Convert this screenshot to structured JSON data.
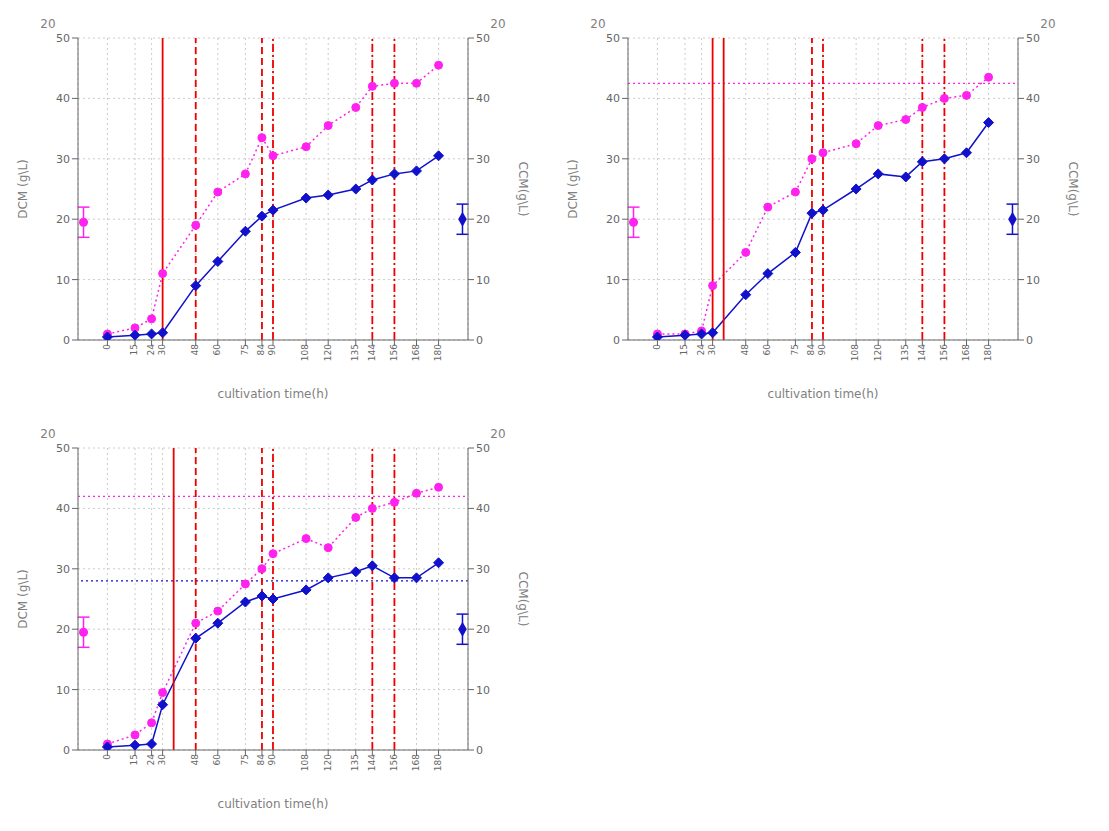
{
  "chart_data": [
    {
      "type": "line",
      "x": [
        0,
        15,
        24,
        30,
        48,
        60,
        75,
        84,
        90,
        108,
        120,
        135,
        144,
        156,
        168,
        180
      ],
      "series": [
        {
          "color": "#FF22EE",
          "marker": "circle",
          "line_style": "dotted",
          "values": [
            1.0,
            2.0,
            3.5,
            11.0,
            19.0,
            24.5,
            27.5,
            33.5,
            30.5,
            32.0,
            35.5,
            38.5,
            42.0,
            42.5,
            42.5,
            45.5
          ]
        },
        {
          "color": "#1111CC",
          "marker": "diamond",
          "line_style": "solid",
          "axis": "y2",
          "values": [
            0.5,
            0.8,
            1.0,
            1.2,
            9.0,
            13.0,
            18.0,
            20.5,
            21.5,
            23.5,
            24.0,
            25.0,
            26.5,
            27.5,
            28.0,
            30.5
          ]
        },
        {
          "color": "#FF22EE",
          "marker": "circle",
          "x": [
            -13
          ],
          "values": [
            19.5
          ],
          "error": [
            2.5
          ]
        },
        {
          "color": "#1111CC",
          "marker": "diamond",
          "axis": "y2",
          "x": [
            193
          ],
          "values": [
            20.0
          ],
          "error": [
            2.5
          ]
        }
      ],
      "vlines": [
        {
          "x": 30,
          "color": "#EE0000",
          "line_style": "solid"
        },
        {
          "x": 48,
          "color": "#EE0000",
          "line_style": "dashed"
        },
        {
          "x": 84,
          "color": "#EE0000",
          "line_style": "dashed"
        },
        {
          "x": 90,
          "color": "#EE0000",
          "line_style": "dashdot"
        },
        {
          "x": 144,
          "color": "#EE0000",
          "line_style": "dashdot"
        },
        {
          "x": 156,
          "color": "#EE0000",
          "line_style": "dashdot"
        }
      ],
      "hlines": [],
      "xlabel": "cultivation time(h)",
      "ylabel": "DCM (g\\L)",
      "y2label": "CCM(g\\L)",
      "xlim": [
        -16,
        196
      ],
      "xticks": [
        0,
        15,
        24,
        30,
        48,
        60,
        75,
        84,
        90,
        108,
        120,
        135,
        144,
        156,
        168,
        180
      ],
      "ylim": [
        0,
        50
      ],
      "yticks": [
        0,
        10,
        20,
        30,
        40,
        50
      ],
      "y2lim": [
        0,
        50
      ],
      "y2ticks": [
        0,
        10,
        20,
        30,
        40,
        50
      ],
      "grid": true,
      "annotations": [
        "20",
        "20"
      ]
    },
    {
      "type": "line",
      "x": [
        0,
        15,
        24,
        30,
        48,
        60,
        75,
        84,
        90,
        108,
        120,
        135,
        144,
        156,
        168,
        180
      ],
      "series": [
        {
          "color": "#FF22EE",
          "marker": "circle",
          "line_style": "dotted",
          "values": [
            1.0,
            1.0,
            1.5,
            9.0,
            14.5,
            22.0,
            24.5,
            30.0,
            31.0,
            32.5,
            35.5,
            36.5,
            38.5,
            40.0,
            40.5,
            43.5
          ]
        },
        {
          "color": "#1111CC",
          "marker": "diamond",
          "line_style": "solid",
          "axis": "y2",
          "values": [
            0.5,
            0.8,
            1.0,
            1.2,
            7.5,
            11.0,
            14.5,
            21.0,
            21.5,
            25.0,
            27.5,
            27.0,
            29.5,
            30.0,
            31.0,
            36.0
          ]
        },
        {
          "color": "#FF22EE",
          "marker": "circle",
          "x": [
            -13
          ],
          "values": [
            19.5
          ],
          "error": [
            2.5
          ]
        },
        {
          "color": "#1111CC",
          "marker": "diamond",
          "axis": "y2",
          "x": [
            193
          ],
          "values": [
            20.0
          ],
          "error": [
            2.5
          ]
        }
      ],
      "vlines": [
        {
          "x": 30,
          "color": "#EE0000",
          "line_style": "solid"
        },
        {
          "x": 36,
          "color": "#EE0000",
          "line_style": "solid"
        },
        {
          "x": 84,
          "color": "#EE0000",
          "line_style": "dashed"
        },
        {
          "x": 90,
          "color": "#EE0000",
          "line_style": "dashdot"
        },
        {
          "x": 144,
          "color": "#EE0000",
          "line_style": "dashdot"
        },
        {
          "x": 156,
          "color": "#EE0000",
          "line_style": "dashdot"
        }
      ],
      "hlines": [
        {
          "y": 42.5,
          "color": "#FF22EE",
          "line_style": "dotted"
        }
      ],
      "xlabel": "cultivation time(h)",
      "ylabel": "DCM (g\\L)",
      "y2label": "CCM(g\\L)",
      "xlim": [
        -16,
        196
      ],
      "xticks": [
        0,
        15,
        24,
        30,
        48,
        60,
        75,
        84,
        90,
        108,
        120,
        135,
        144,
        156,
        168,
        180
      ],
      "ylim": [
        0,
        50
      ],
      "yticks": [
        0,
        10,
        20,
        30,
        40,
        50
      ],
      "y2lim": [
        0,
        50
      ],
      "y2ticks": [
        0,
        10,
        20,
        30,
        40,
        50
      ],
      "grid": true,
      "annotations": [
        "20",
        "20"
      ]
    },
    {
      "type": "line",
      "x": [
        0,
        15,
        24,
        30,
        48,
        60,
        75,
        84,
        90,
        108,
        120,
        135,
        144,
        156,
        168,
        180
      ],
      "series": [
        {
          "color": "#FF22EE",
          "marker": "circle",
          "line_style": "dotted",
          "values": [
            1.0,
            2.5,
            4.5,
            9.5,
            21.0,
            23.0,
            27.5,
            30.0,
            32.5,
            35.0,
            33.5,
            38.5,
            40.0,
            41.0,
            42.5,
            43.5
          ]
        },
        {
          "color": "#1111CC",
          "marker": "diamond",
          "line_style": "solid",
          "axis": "y2",
          "values": [
            0.5,
            0.8,
            1.0,
            7.5,
            18.5,
            21.0,
            24.5,
            25.5,
            25.0,
            26.5,
            28.5,
            29.5,
            30.5,
            28.5,
            28.5,
            31.0
          ]
        },
        {
          "color": "#FF22EE",
          "marker": "circle",
          "x": [
            -13
          ],
          "values": [
            19.5
          ],
          "error": [
            2.5
          ]
        },
        {
          "color": "#1111CC",
          "marker": "diamond",
          "axis": "y2",
          "x": [
            193
          ],
          "values": [
            20.0
          ],
          "error": [
            2.5
          ]
        }
      ],
      "vlines": [
        {
          "x": 36,
          "color": "#EE0000",
          "line_style": "solid"
        },
        {
          "x": 48,
          "color": "#EE0000",
          "line_style": "dashed"
        },
        {
          "x": 84,
          "color": "#EE0000",
          "line_style": "dashed"
        },
        {
          "x": 90,
          "color": "#EE0000",
          "line_style": "dashdot"
        },
        {
          "x": 144,
          "color": "#EE0000",
          "line_style": "dashdot"
        },
        {
          "x": 156,
          "color": "#EE0000",
          "line_style": "dashdot"
        }
      ],
      "hlines": [
        {
          "y": 42.0,
          "color": "#FF22EE",
          "line_style": "dotted"
        },
        {
          "y": 28.0,
          "color": "#1111CC",
          "line_style": "dotted",
          "axis": "y2"
        }
      ],
      "xlabel": "cultivation time(h)",
      "ylabel": "DCM (g\\L)",
      "y2label": "CCM(g\\L)",
      "xlim": [
        -16,
        196
      ],
      "xticks": [
        0,
        15,
        24,
        30,
        48,
        60,
        75,
        84,
        90,
        108,
        120,
        135,
        144,
        156,
        168,
        180
      ],
      "ylim": [
        0,
        50
      ],
      "yticks": [
        0,
        10,
        20,
        30,
        40,
        50
      ],
      "y2lim": [
        0,
        50
      ],
      "y2ticks": [
        0,
        10,
        20,
        30,
        40,
        50
      ],
      "grid": true,
      "annotations": [
        "20",
        "20"
      ]
    }
  ]
}
